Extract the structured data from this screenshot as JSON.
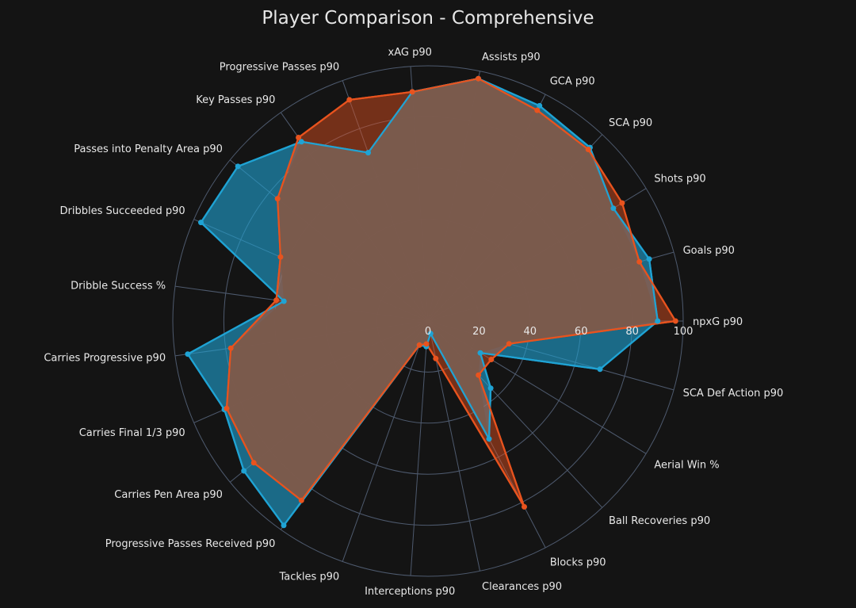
{
  "chart_data": {
    "type": "radar",
    "title": "Player Comparison - Comprehensive",
    "rlim": [
      0,
      100
    ],
    "rticks": [
      "0",
      "20",
      "40",
      "60",
      "80",
      "100"
    ],
    "axes": [
      "npxG p90",
      "Goals p90",
      "Shots p90",
      "SCA p90",
      "GCA p90",
      "Assists p90",
      "xAG p90",
      "Progressive Passes p90",
      "Key Passes p90",
      "Passes into Penalty Area p90",
      "Dribbles Succeeded p90",
      "Dribble Success %",
      "Carries Progressive p90",
      "Carries Final 1/3 p90",
      "Carries Pen Area p90",
      "Progressive Passes Received p90",
      "Tackles p90",
      "Interceptions p90",
      "Clearances p90",
      "Blocks p90",
      "Ball Recoveries p90",
      "Aerial Win %",
      "SCA Def Action p90"
    ],
    "series": [
      {
        "color": "#1fa3d4",
        "values": [
          90,
          90,
          85,
          93,
          95,
          97,
          90,
          70,
          86,
          96,
          97,
          57,
          95,
          87,
          93,
          98,
          10,
          10,
          5,
          52,
          36,
          24,
          70
        ]
      },
      {
        "color": "#e8531e",
        "values": [
          97,
          86,
          89,
          92,
          93,
          97,
          90,
          92,
          88,
          76,
          63,
          60,
          78,
          86,
          88,
          86,
          10,
          9,
          15,
          82,
          29,
          29,
          33
        ]
      }
    ],
    "overlap_color": "#7a5a4c"
  }
}
